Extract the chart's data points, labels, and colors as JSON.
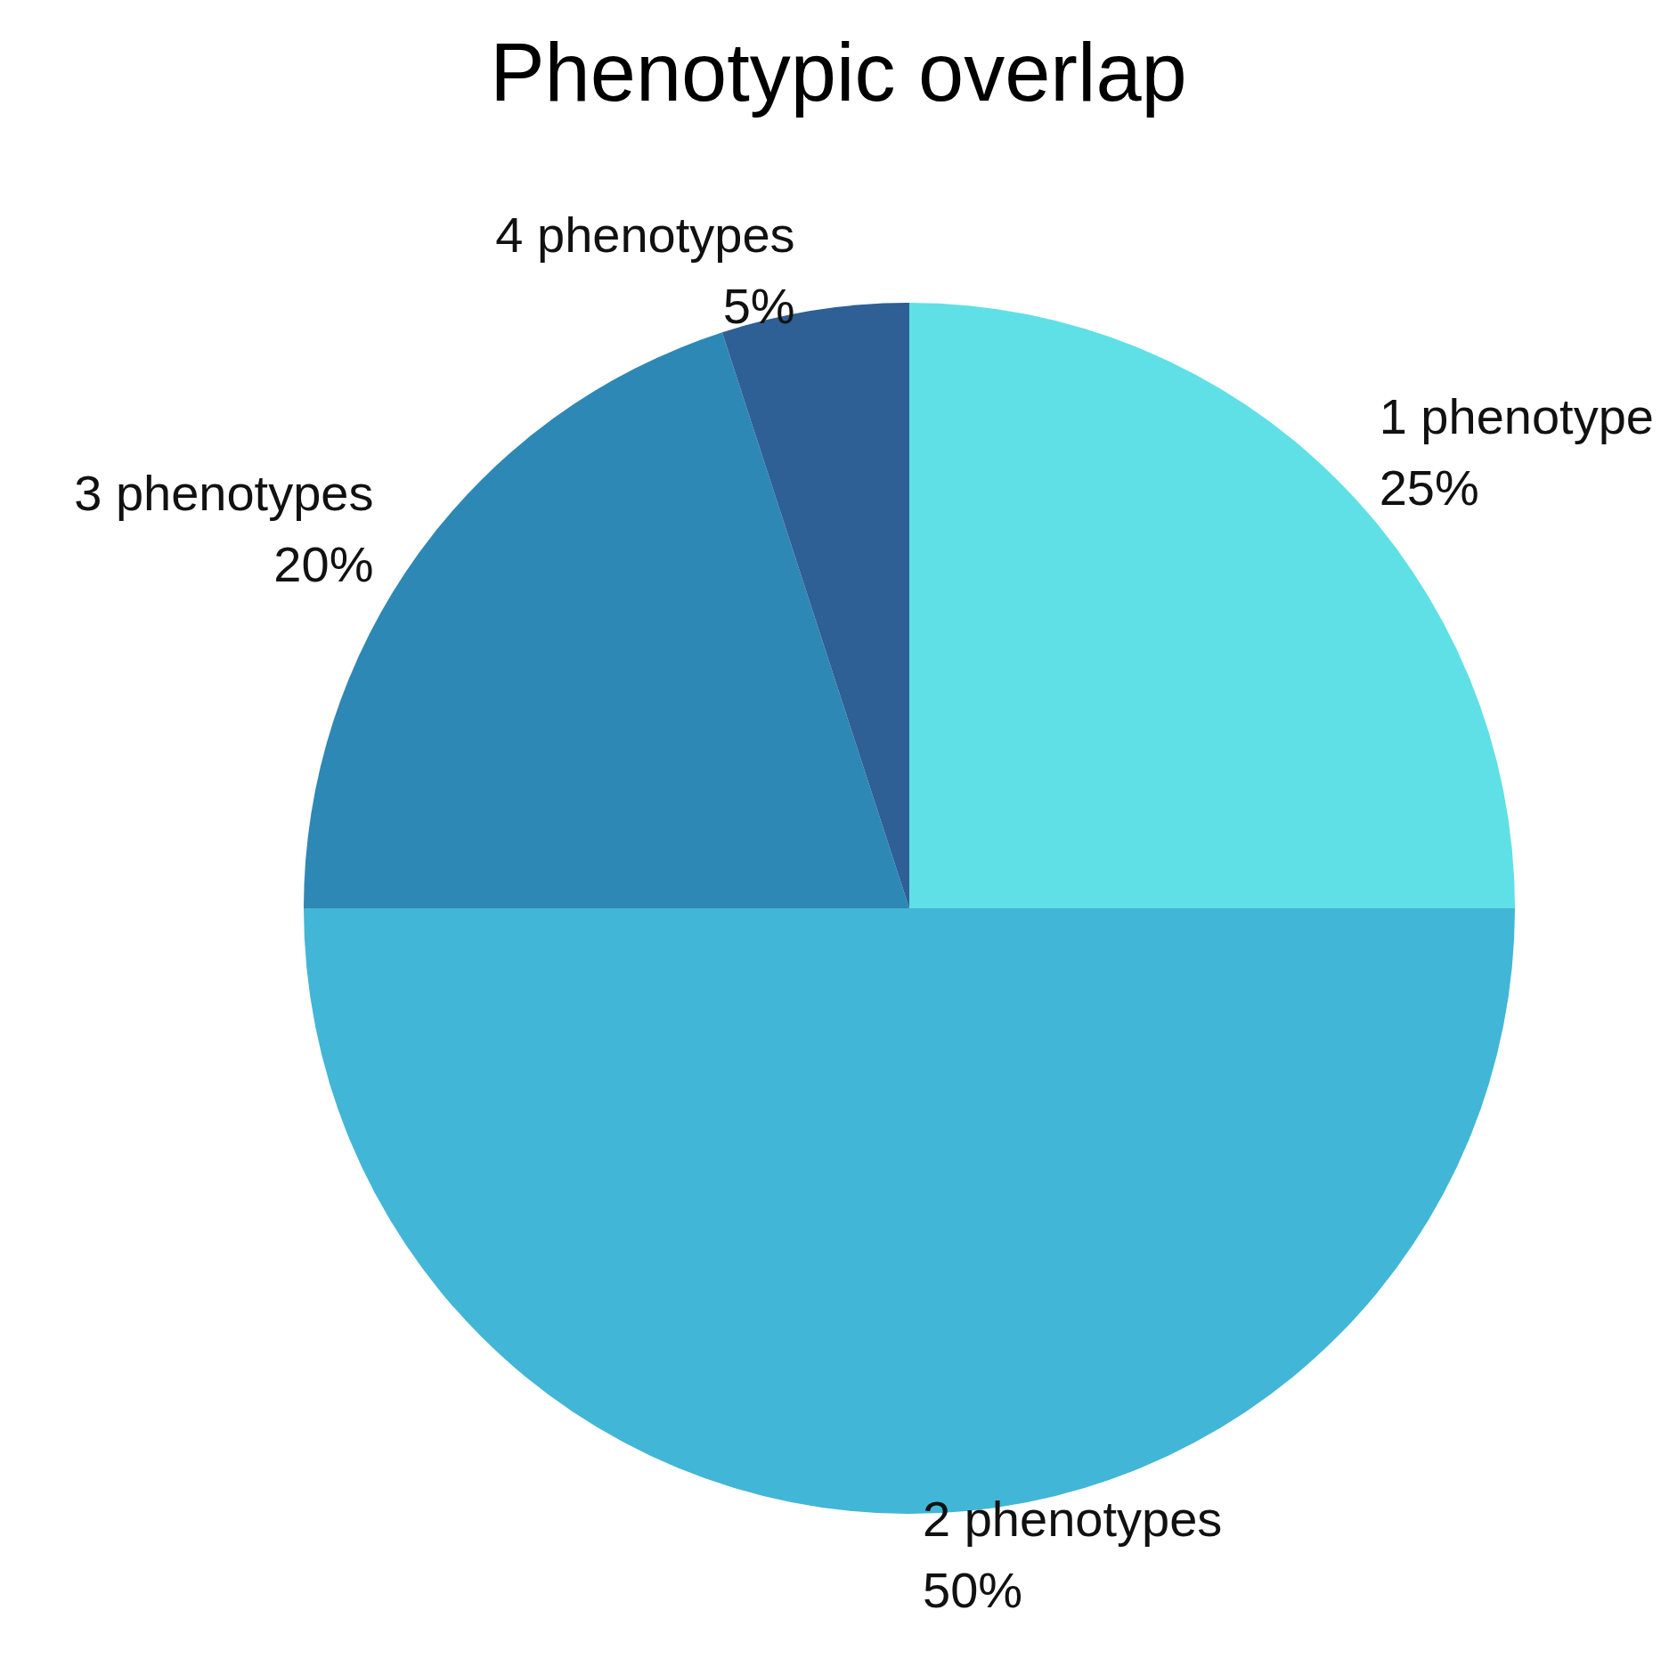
{
  "chart_data": {
    "type": "pie",
    "title": "Phenotypic overlap",
    "categories": [
      "1 phenotype",
      "2 phenotypes",
      "3 phenotypes",
      "4 phenotypes"
    ],
    "values": [
      25,
      50,
      20,
      5
    ],
    "colors": [
      "#5fe0e6",
      "#42b6d6",
      "#2e88b5",
      "#2e5f95"
    ],
    "value_labels": [
      "25%",
      "50%",
      "20%",
      "5%"
    ],
    "legend": false
  }
}
